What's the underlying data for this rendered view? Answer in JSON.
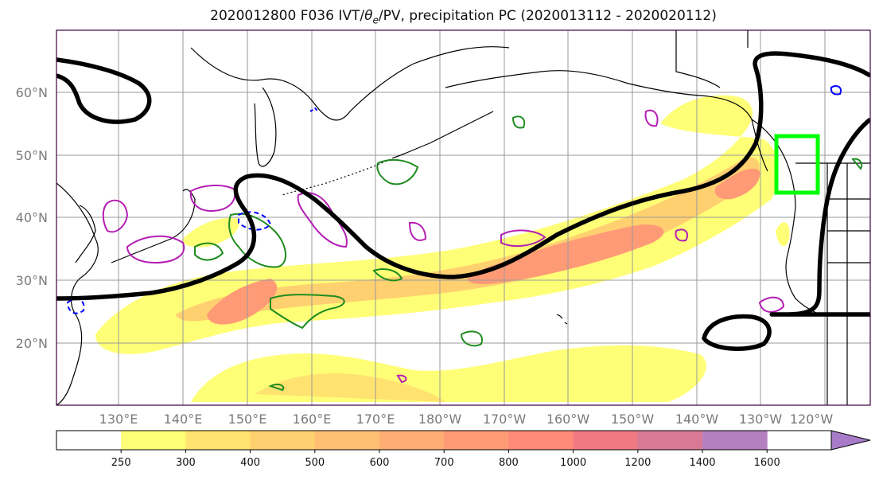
{
  "title": {
    "main": "2020012800 F036 IVT/",
    "theta": "θ",
    "theta_sub": "e",
    "rest": "/PV, precipitation PC (2020013112 - 2020020112)"
  },
  "map": {
    "lat_labels": [
      "20°N",
      "30°N",
      "40°N",
      "50°N",
      "60°N"
    ],
    "lon_labels": [
      "130°E",
      "140°E",
      "150°E",
      "160°E",
      "170°E",
      "180°W",
      "170°W",
      "160°W",
      "150°W",
      "140°W",
      "130°W",
      "120°W"
    ],
    "colors": {
      "ivt_contour": "#000000",
      "theta_e_contour": "#1e8c1e",
      "pv_contour": "#b41eb4",
      "precip_contour": "#0000ff",
      "target_box": "#00ff00",
      "coastline": "#000000",
      "grid": "#9a9a9a"
    }
  },
  "colorbar": {
    "ticks": [
      "250",
      "300",
      "400",
      "500",
      "600",
      "700",
      "800",
      "1000",
      "1200",
      "1400",
      "1600"
    ],
    "colors": [
      "#ffffff",
      "#ffff77",
      "#ffe270",
      "#ffd070",
      "#ffbf73",
      "#ffae73",
      "#ff9a76",
      "#ff8a78",
      "#f07a82",
      "#d87a96",
      "#b480c0",
      "#a77bc8"
    ]
  }
}
